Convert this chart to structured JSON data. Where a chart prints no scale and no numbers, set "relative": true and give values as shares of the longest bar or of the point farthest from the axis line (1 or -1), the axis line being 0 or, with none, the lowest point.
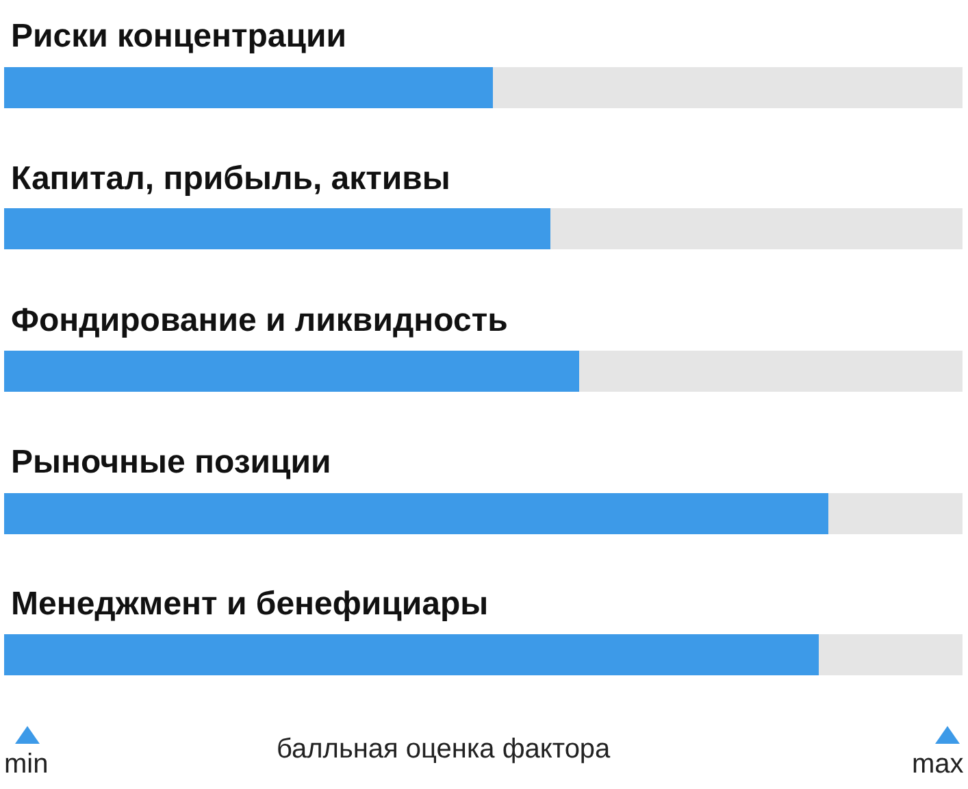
{
  "chart_data": {
    "type": "bar",
    "orientation": "horizontal",
    "stacked": true,
    "relative": true,
    "categories": [
      "Риски концентрации",
      "Капитал, прибыль, активы",
      "Фондирование и ликвидность",
      "Рыночные позиции",
      "Менеджмент и бенефициары"
    ],
    "series": [
      {
        "color": "#3d9ae8",
        "values": [
          0.51,
          0.57,
          0.6,
          0.86,
          0.85
        ]
      },
      {
        "color": "#e5e5e5",
        "values": [
          0.49,
          0.43,
          0.4,
          0.14,
          0.15
        ]
      }
    ],
    "xlabel": "балльная оценка фактора",
    "annotations": [
      "min",
      "max"
    ]
  }
}
